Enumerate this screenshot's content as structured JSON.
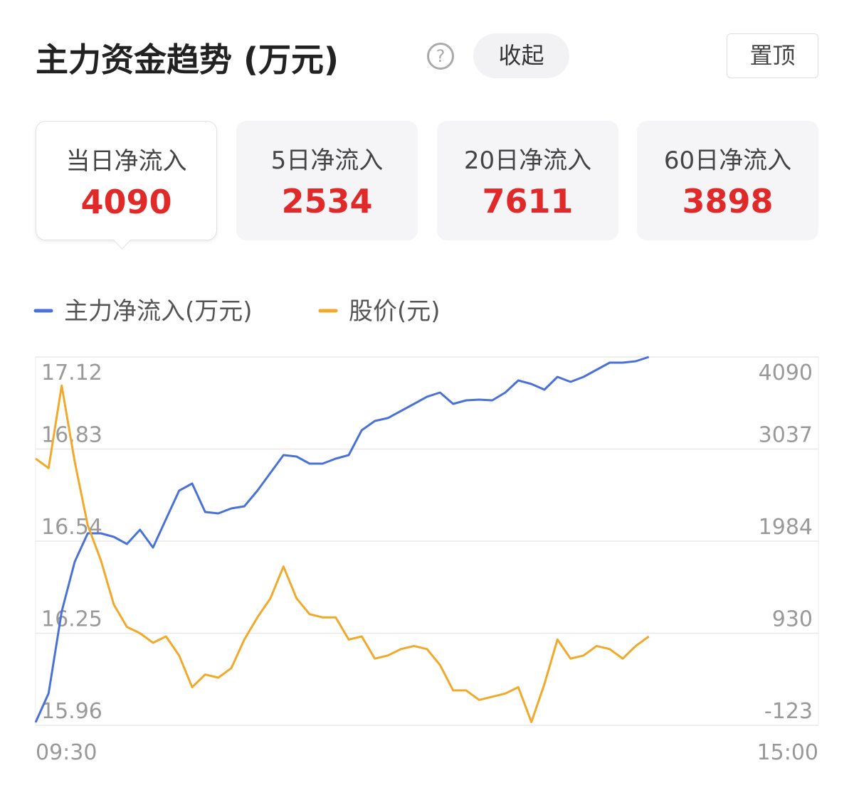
{
  "header": {
    "title": "主力资金趋势 (万元)",
    "collapse_button": "收起",
    "pin_button": "置顶"
  },
  "tabs": [
    {
      "label": "当日净流入",
      "value": "4090"
    },
    {
      "label": "5日净流入",
      "value": "2534"
    },
    {
      "label": "20日净流入",
      "value": "7611"
    },
    {
      "label": "60日净流入",
      "value": "3898"
    }
  ],
  "chart_data": {
    "type": "line",
    "categories": [
      "09:30",
      null,
      null,
      null,
      null,
      null,
      null,
      null,
      null,
      null,
      null,
      null,
      null,
      null,
      null,
      null,
      null,
      null,
      null,
      null,
      null,
      null,
      null,
      null,
      null,
      null,
      null,
      null,
      null,
      null,
      null,
      null,
      null,
      null,
      null,
      null,
      null,
      null,
      null,
      null,
      null,
      null,
      null,
      null,
      null,
      null,
      null,
      null,
      null,
      null,
      null,
      null,
      null,
      null,
      null,
      null,
      null,
      null,
      null,
      null,
      "15:00"
    ],
    "series": [
      {
        "name": "主力净流入(万元)",
        "color": "#4a72d6",
        "axis": "y2",
        "values": [
          -90,
          243,
          1178,
          1748,
          2073,
          2073,
          2032,
          1951,
          2114,
          1910,
          2236,
          2561,
          2642,
          2317,
          2301,
          2358,
          2382,
          2561,
          2764,
          2968,
          2951,
          2870,
          2870,
          2927,
          2968,
          3252,
          3358,
          3391,
          3472,
          3553,
          3635,
          3683,
          3553,
          3594,
          3602,
          3594,
          3683,
          3822,
          3781,
          3716,
          3862,
          3805,
          3862,
          3944,
          4025,
          4025,
          4041,
          4090,
          null,
          null,
          null,
          null,
          null,
          null,
          null,
          null,
          null,
          null,
          null,
          null,
          null
        ]
      },
      {
        "name": "股价(元)",
        "color": "#f0a92a",
        "values": [
          16.8,
          16.77,
          17.03,
          16.79,
          16.59,
          16.48,
          16.34,
          16.27,
          16.25,
          16.22,
          16.24,
          16.18,
          16.08,
          16.12,
          16.11,
          16.14,
          16.23,
          16.3,
          16.36,
          16.46,
          16.36,
          16.31,
          16.3,
          16.3,
          16.23,
          16.24,
          16.17,
          16.18,
          16.2,
          16.21,
          16.2,
          16.15,
          16.07,
          16.07,
          16.04,
          16.05,
          16.06,
          16.08,
          15.97,
          16.09,
          16.23,
          16.17,
          16.18,
          16.21,
          16.2,
          16.17,
          16.21,
          16.24,
          null,
          null,
          null,
          null,
          null,
          null,
          null,
          null,
          null,
          null,
          null,
          null,
          null
        ]
      }
    ],
    "ylim": [
      15.96,
      17.12
    ],
    "yticks": [
      15.96,
      16.25,
      16.54,
      16.83,
      17.12
    ],
    "y2lim": [
      -123,
      4090
    ],
    "y2ticks": [
      -123,
      930,
      1984,
      3037,
      4090
    ],
    "grid": true
  }
}
